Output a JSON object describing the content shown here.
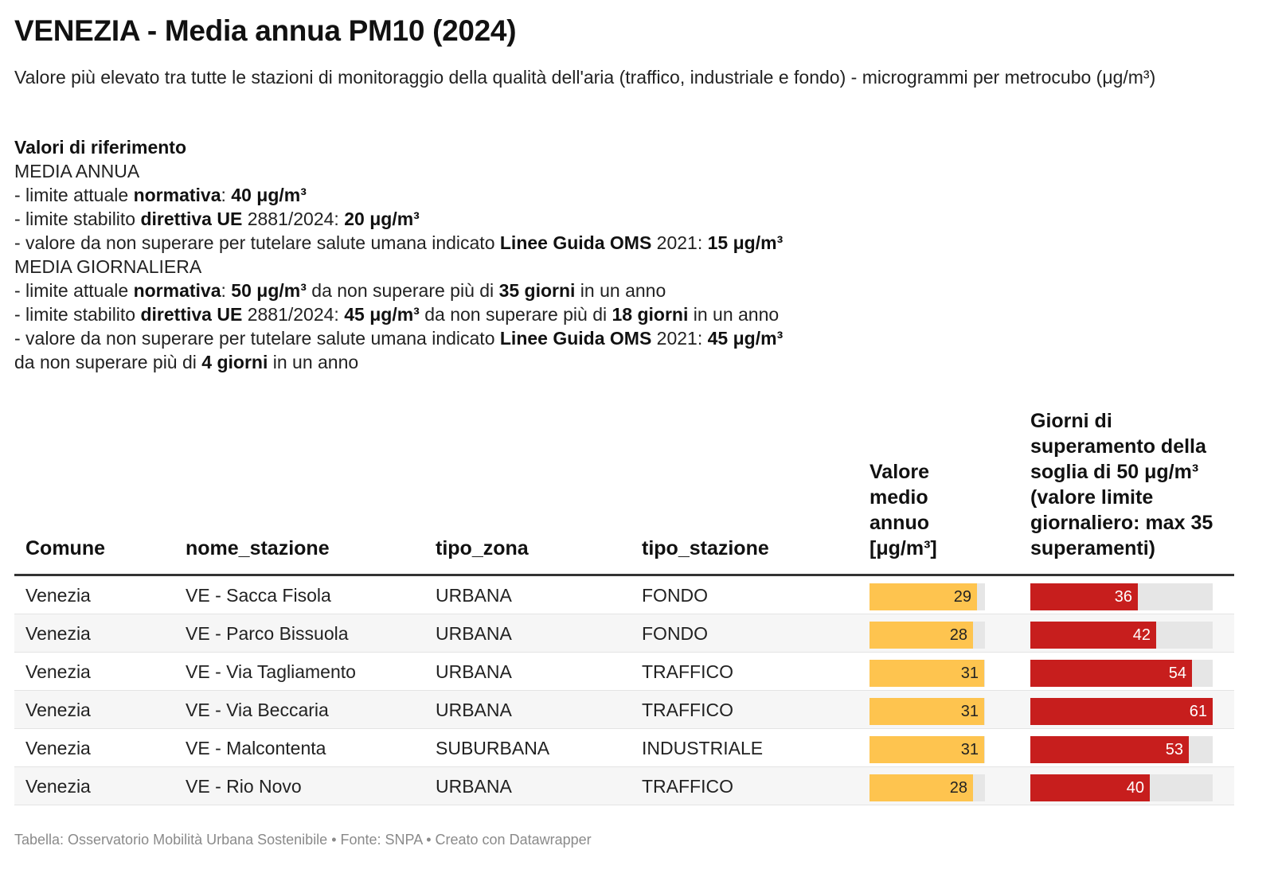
{
  "header": {
    "title": "VENEZIA - Media annua PM10 (2024)",
    "subtitle": "Valore più elevato tra tutte le stazioni di monitoraggio della qualità dell'aria (traffico, industriale e fondo) - microgrammi per metrocubo (μg/m³)"
  },
  "reference": {
    "heading": "Valori di riferimento",
    "annual_heading": "MEDIA ANNUA",
    "daily_heading": "MEDIA GIORNALIERA",
    "annual_lines": [
      [
        {
          "t": "- limite attuale ",
          "b": false
        },
        {
          "t": "normativa",
          "b": true
        },
        {
          "t": ": ",
          "b": false
        },
        {
          "t": "40 μg/m³",
          "b": true
        }
      ],
      [
        {
          "t": "- limite stabilito ",
          "b": false
        },
        {
          "t": "direttiva UE",
          "b": true
        },
        {
          "t": " 2881/2024: ",
          "b": false
        },
        {
          "t": "20 μg/m³",
          "b": true
        }
      ],
      [
        {
          "t": "- valore da non superare per tutelare salute umana indicato ",
          "b": false
        },
        {
          "t": "Linee Guida OMS",
          "b": true
        },
        {
          "t": " 2021: ",
          "b": false
        },
        {
          "t": "15 μg/m³",
          "b": true
        }
      ]
    ],
    "daily_lines": [
      [
        {
          "t": "- limite attuale ",
          "b": false
        },
        {
          "t": "normativa",
          "b": true
        },
        {
          "t": ": ",
          "b": false
        },
        {
          "t": "50 μg/m³",
          "b": true
        },
        {
          "t": " da non superare più di ",
          "b": false
        },
        {
          "t": "35 giorni",
          "b": true
        },
        {
          "t": " in un anno",
          "b": false
        }
      ],
      [
        {
          "t": "- limite stabilito ",
          "b": false
        },
        {
          "t": "direttiva UE",
          "b": true
        },
        {
          "t": " 2881/2024: ",
          "b": false
        },
        {
          "t": "45 μg/m³",
          "b": true
        },
        {
          "t": " da non superare più di ",
          "b": false
        },
        {
          "t": "18 giorni",
          "b": true
        },
        {
          "t": " in un anno",
          "b": false
        }
      ],
      [
        {
          "t": "- valore da non superare per tutelare salute umana indicato ",
          "b": false
        },
        {
          "t": "Linee Guida OMS",
          "b": true
        },
        {
          "t": " 2021: ",
          "b": false
        },
        {
          "t": "45 μg/m³",
          "b": true
        }
      ],
      [
        {
          "t": "da non superare più di ",
          "b": false
        },
        {
          "t": "4 giorni",
          "b": true
        },
        {
          "t": " in un anno",
          "b": false
        }
      ]
    ]
  },
  "chart_data": {
    "type": "table",
    "columns": [
      "Comune",
      "nome_stazione",
      "tipo_zona",
      "tipo_stazione",
      "Valore medio annuo [μg/m³]",
      "Giorni di superamento della soglia di 50 μg/m³ (valore limite giornaliero: max 35 superamenti)"
    ],
    "rows": [
      {
        "comune": "Venezia",
        "stazione": "VE - Sacca Fisola",
        "zona": "URBANA",
        "tipo": "FONDO",
        "media": 29,
        "giorni": 36
      },
      {
        "comune": "Venezia",
        "stazione": "VE - Parco Bissuola",
        "zona": "URBANA",
        "tipo": "FONDO",
        "media": 28,
        "giorni": 42
      },
      {
        "comune": "Venezia",
        "stazione": "VE - Via Tagliamento",
        "zona": "URBANA",
        "tipo": "TRAFFICO",
        "media": 31,
        "giorni": 54
      },
      {
        "comune": "Venezia",
        "stazione": "VE - Via Beccaria",
        "zona": "URBANA",
        "tipo": "TRAFFICO",
        "media": 31,
        "giorni": 61
      },
      {
        "comune": "Venezia",
        "stazione": "VE - Malcontenta",
        "zona": "SUBURBANA",
        "tipo": "INDUSTRIALE",
        "media": 31,
        "giorni": 53
      },
      {
        "comune": "Venezia",
        "stazione": "VE - Rio Novo",
        "zona": "URBANA",
        "tipo": "TRAFFICO",
        "media": 28,
        "giorni": 40
      }
    ],
    "bar_scales": {
      "media_max": 31,
      "giorni_max": 61
    },
    "colors": {
      "media_bar": "#fec44f",
      "giorni_bar": "#c71e1d",
      "track": "#e6e6e6"
    }
  },
  "footer": {
    "text": "Tabella: Osservatorio Mobilità Urbana Sostenibile • Fonte: SNPA • Creato con Datawrapper"
  }
}
